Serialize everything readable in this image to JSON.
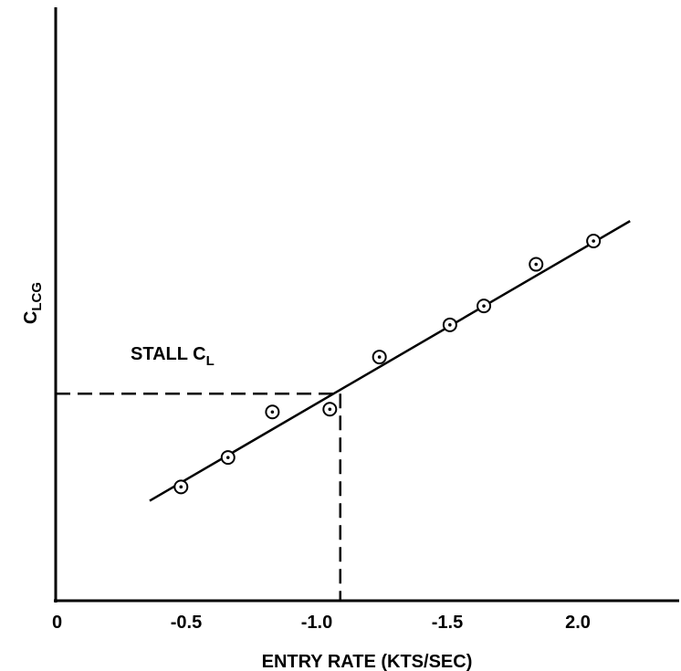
{
  "chart_data": {
    "type": "scatter",
    "title": "",
    "xlabel": "ENTRY RATE (KTS/SEC)",
    "ylabel_base": "C",
    "ylabel_sub": "LCG",
    "xlim": [
      0,
      2.25
    ],
    "ylim": [
      0,
      1
    ],
    "x_ticks": [
      {
        "value": 0,
        "label": "0"
      },
      {
        "value": 0.5,
        "label": "-0.5"
      },
      {
        "value": 1.0,
        "label": "-1.0"
      },
      {
        "value": 1.5,
        "label": "-1.5"
      },
      {
        "value": 2.0,
        "label": "2.0"
      }
    ],
    "points": [
      {
        "x": 0.48,
        "y": 0.205
      },
      {
        "x": 0.66,
        "y": 0.258
      },
      {
        "x": 0.83,
        "y": 0.34
      },
      {
        "x": 1.05,
        "y": 0.345
      },
      {
        "x": 1.24,
        "y": 0.439
      },
      {
        "x": 1.51,
        "y": 0.497
      },
      {
        "x": 1.64,
        "y": 0.531
      },
      {
        "x": 1.84,
        "y": 0.606
      },
      {
        "x": 2.06,
        "y": 0.648
      }
    ],
    "fit_line": {
      "x": [
        0.36,
        2.2
      ],
      "y": [
        0.18,
        0.684
      ]
    },
    "stall": {
      "label_base": "STALL C",
      "label_sub": "L",
      "x": 1.09,
      "y": 0.373
    }
  }
}
